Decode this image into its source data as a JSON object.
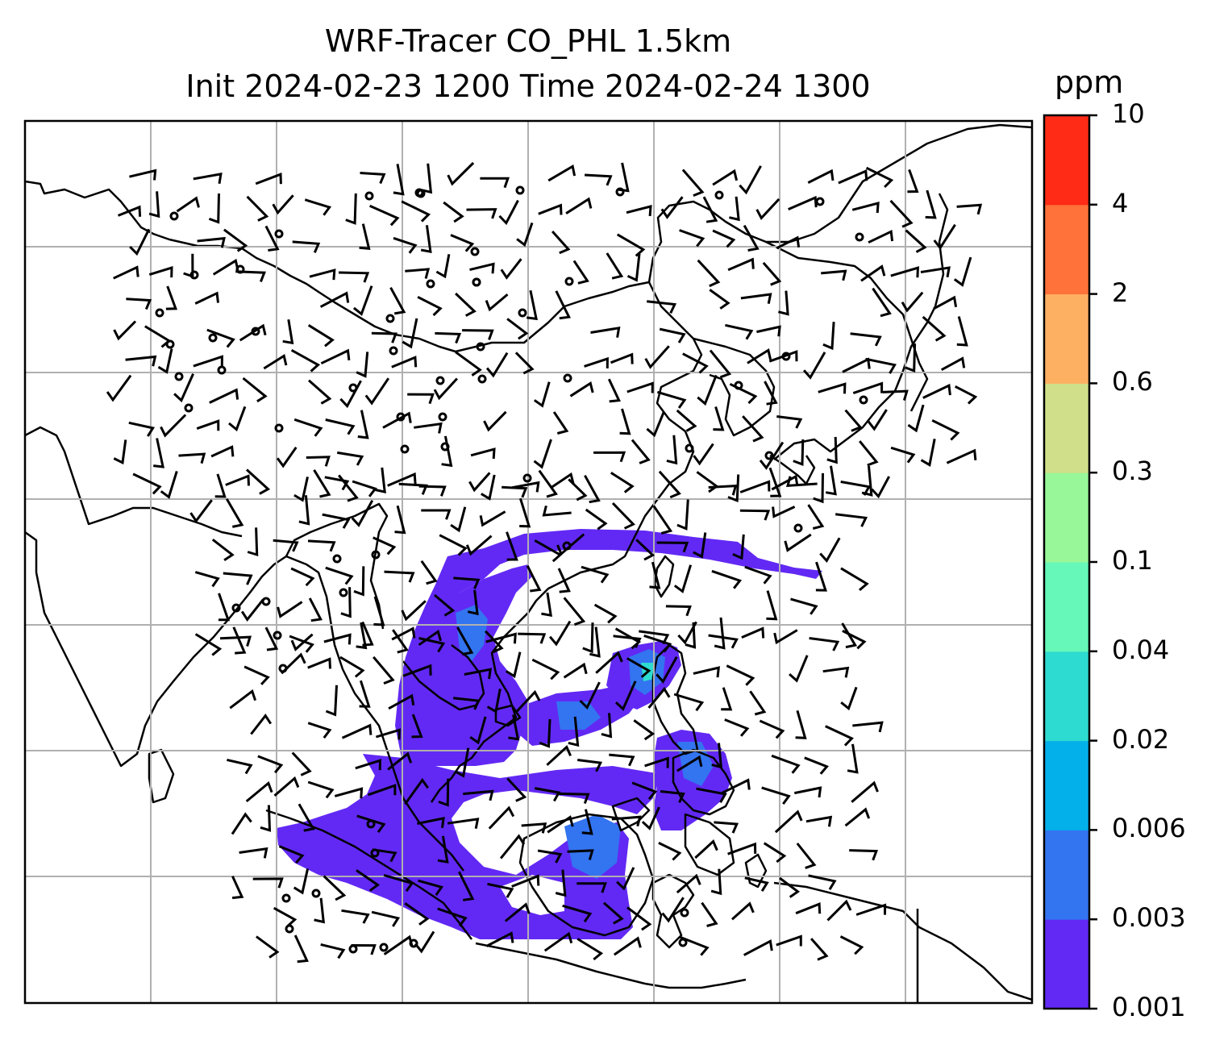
{
  "title": {
    "line1": "WRF-Tracer CO_PHL 1.5km",
    "line2": "Init 2024-02-23 1200 Time 2024-02-24 1300"
  },
  "colorbar": {
    "unit": "ppm",
    "ticks": [
      "0.001",
      "0.003",
      "0.006",
      "0.02",
      "0.04",
      "0.1",
      "0.3",
      "0.6",
      "2",
      "4",
      "10"
    ],
    "colors": [
      "#6229f4",
      "#3374f0",
      "#04b0ea",
      "#2edbd1",
      "#66f8b8",
      "#98f799",
      "#d0e08a",
      "#feb062",
      "#ff7239",
      "#ff2b16"
    ]
  },
  "map": {
    "gridlines": true,
    "coastline_color": "#000000",
    "plume_color": "#6229f4",
    "plume_core_color": "#3374f0"
  }
}
